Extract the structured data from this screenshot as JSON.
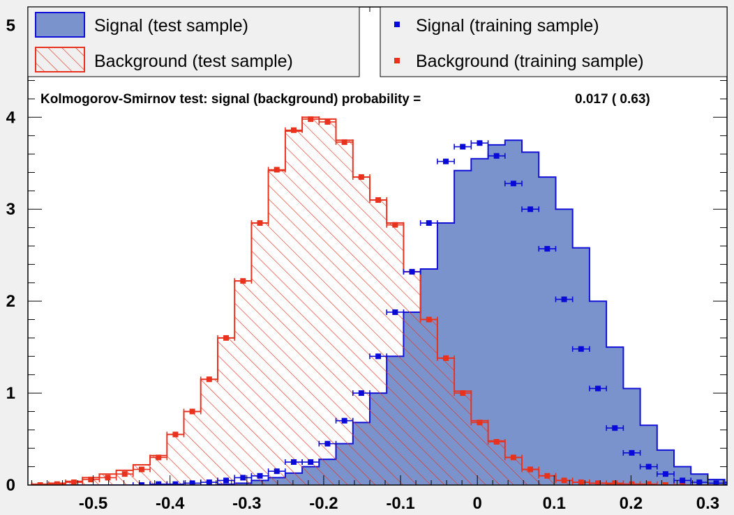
{
  "chart_data": {
    "type": "histogram",
    "title": "",
    "xlabel": "",
    "ylabel": "",
    "xlim": [
      -0.585,
      0.325
    ],
    "ylim": [
      0,
      5.2
    ],
    "bin_edges_start": -0.58,
    "bin_width": 0.022,
    "x_ticks": [
      -0.5,
      -0.4,
      -0.3,
      -0.2,
      -0.1,
      0,
      0.1,
      0.2,
      0.3
    ],
    "x_tick_labels": [
      "-0.5",
      "-0.4",
      "-0.3",
      "-0.2",
      "-0.1",
      "0",
      "0.1",
      "0.2",
      "0.3"
    ],
    "y_ticks": [
      0,
      1,
      2,
      3,
      4,
      5
    ],
    "y_tick_labels": [
      "0",
      "1",
      "2",
      "3",
      "4",
      "5"
    ],
    "legend_placement": "top",
    "series": [
      {
        "name": "Signal (test sample)",
        "kind": "filled-histogram",
        "color_fill": "#7b93cc",
        "color_line": "#1010d8",
        "values": [
          0,
          0,
          0,
          0,
          0,
          0,
          0,
          0,
          0,
          0,
          0,
          0.01,
          0.02,
          0.05,
          0.08,
          0.13,
          0.2,
          0.28,
          0.45,
          0.68,
          1.0,
          1.4,
          1.88,
          2.35,
          2.85,
          3.42,
          3.55,
          3.7,
          3.75,
          3.62,
          3.35,
          3.0,
          2.58,
          2.0,
          1.5,
          1.05,
          0.65,
          0.38,
          0.2,
          0.12,
          0.06,
          0.03,
          0.02,
          0.01
        ]
      },
      {
        "name": "Background (test sample)",
        "kind": "hatched-histogram",
        "color_line": "#e8321e",
        "values": [
          0.01,
          0.02,
          0.04,
          0.08,
          0.12,
          0.16,
          0.22,
          0.32,
          0.55,
          0.8,
          1.15,
          1.6,
          2.22,
          2.85,
          3.42,
          3.85,
          4.0,
          3.98,
          3.75,
          3.35,
          3.1,
          2.85,
          2.32,
          1.8,
          1.38,
          1.02,
          0.7,
          0.48,
          0.3,
          0.17,
          0.1,
          0.05,
          0.03,
          0.02,
          0.01,
          0.01,
          0,
          0,
          0,
          0,
          0,
          0,
          0,
          0
        ]
      },
      {
        "name": "Signal (training sample)",
        "kind": "points",
        "color": "#0a0ad8",
        "values": [
          null,
          null,
          null,
          null,
          null,
          null,
          0,
          0.01,
          0.01,
          0.02,
          0.03,
          0.05,
          0.08,
          0.1,
          0.15,
          0.25,
          0.25,
          0.45,
          0.7,
          1.0,
          1.4,
          1.88,
          2.32,
          2.85,
          3.52,
          3.68,
          3.72,
          3.58,
          3.28,
          3.0,
          2.57,
          2.02,
          1.48,
          1.05,
          0.62,
          0.35,
          0.2,
          0.12,
          0.05,
          0.03,
          0.02,
          0.01,
          0.01,
          0
        ]
      },
      {
        "name": "Background (training sample)",
        "kind": "points",
        "color": "#e8321e",
        "values": [
          0,
          0.01,
          0.03,
          0.06,
          0.08,
          0.12,
          0.17,
          0.3,
          0.55,
          0.8,
          1.15,
          1.6,
          2.22,
          2.85,
          3.43,
          3.86,
          3.98,
          3.95,
          3.73,
          3.35,
          3.1,
          2.83,
          2.32,
          1.8,
          1.38,
          1.0,
          0.68,
          0.47,
          0.3,
          0.17,
          0.1,
          0.05,
          0.03,
          0.02,
          0.02,
          0.01,
          0.01,
          0,
          0,
          0,
          null,
          null,
          null,
          null
        ]
      }
    ],
    "annotation_label": "Kolmogorov-Smirnov test: signal (background) probability =",
    "annotation_values": "0.017 (   0.63)"
  }
}
